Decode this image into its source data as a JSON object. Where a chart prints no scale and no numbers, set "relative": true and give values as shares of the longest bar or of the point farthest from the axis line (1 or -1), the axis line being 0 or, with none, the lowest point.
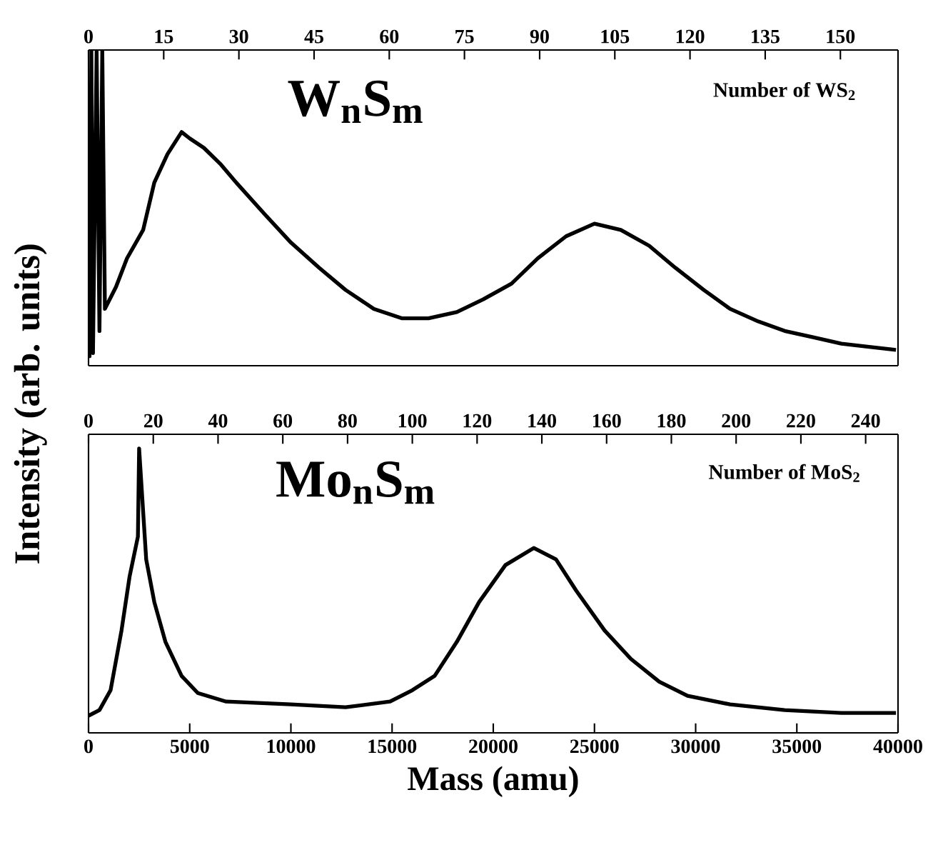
{
  "chart_data": [
    {
      "type": "line",
      "title": "W$_{n}$S$_{m}$",
      "ylabel": "Intensity (arb. units)",
      "x2label": "Number of WS$_{2}$",
      "relative": true,
      "tick_labels": "x2",
      "color": "#000000",
      "xlim": [
        0,
        40000
      ],
      "x2lim": [
        0,
        161.5
      ],
      "x2ticks": [
        0,
        15,
        30,
        45,
        60,
        75,
        90,
        105,
        120,
        135,
        150
      ],
      "x": [
        0,
        50,
        140,
        220,
        400,
        540,
        680,
        810,
        1360,
        1900,
        2700,
        3250,
        3900,
        4600,
        5000,
        5700,
        6500,
        7300,
        8700,
        10000,
        11400,
        12700,
        14100,
        15500,
        16800,
        18200,
        19500,
        20900,
        22200,
        23600,
        25000,
        26300,
        27700,
        29000,
        30400,
        31700,
        33100,
        34400,
        35800,
        37200,
        38500,
        39900
      ],
      "values": [
        0.03,
        0.03,
        1,
        0.04,
        1,
        0.11,
        1,
        0.18,
        0.25,
        0.34,
        0.43,
        0.58,
        0.67,
        0.74,
        0.72,
        0.69,
        0.64,
        0.58,
        0.48,
        0.39,
        0.31,
        0.24,
        0.18,
        0.15,
        0.15,
        0.17,
        0.21,
        0.26,
        0.34,
        0.41,
        0.45,
        0.43,
        0.38,
        0.31,
        0.24,
        0.18,
        0.14,
        0.11,
        0.09,
        0.07,
        0.06,
        0.05
      ]
    },
    {
      "type": "line",
      "title": "Mo$_{n}$S$_{m}$",
      "xlabel": "Mass (amu)",
      "x2label": "Number of MoS$_{2}$",
      "relative": true,
      "color": "#000000",
      "xlim": [
        0,
        40000
      ],
      "xticks": [
        0,
        5000,
        10000,
        15000,
        20000,
        25000,
        30000,
        35000,
        40000
      ],
      "x2lim": [
        0,
        250
      ],
      "x2ticks": [
        0,
        20,
        40,
        60,
        80,
        100,
        120,
        140,
        160,
        180,
        200,
        220,
        240
      ],
      "x": [
        0,
        540,
        1090,
        1630,
        2030,
        2440,
        2500,
        2850,
        3250,
        3800,
        4600,
        5400,
        6800,
        10000,
        12700,
        14900,
        16000,
        17100,
        18200,
        19300,
        20600,
        22000,
        23100,
        24100,
        25500,
        26800,
        28200,
        29600,
        31700,
        34400,
        37200,
        39900
      ],
      "values": [
        0.06,
        0.08,
        0.15,
        0.36,
        0.55,
        0.69,
        1,
        0.61,
        0.46,
        0.32,
        0.2,
        0.14,
        0.11,
        0.1,
        0.09,
        0.11,
        0.15,
        0.2,
        0.32,
        0.46,
        0.59,
        0.65,
        0.61,
        0.5,
        0.36,
        0.26,
        0.18,
        0.13,
        0.1,
        0.08,
        0.07,
        0.07
      ]
    }
  ]
}
